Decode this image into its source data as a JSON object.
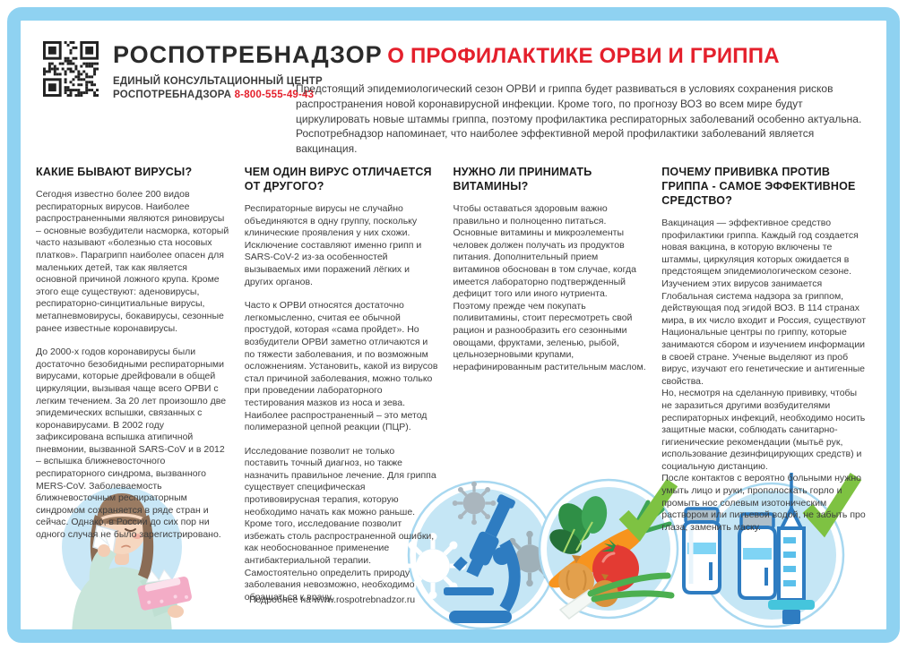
{
  "colors": {
    "frame-blue": "#8fd2f1",
    "accent-red": "#e4202c",
    "circle-blue": "#c6e6f5",
    "check-green": "#7ec242",
    "micro-blue": "#2e7cc1"
  },
  "header": {
    "org_name": "РОСПОТРЕБНАДЗОР",
    "center_line1": "ЕДИНЫЙ КОНСУЛЬТАЦИОННЫЙ ЦЕНТР",
    "center_line2": "РОСПОТРЕБНАДЗОРА",
    "phone": "8-800-555-49-43"
  },
  "title": "О ПРОФИЛАКТИКЕ ОРВИ И ГРИППА",
  "intro": "Предстоящий эпидемиологический сезон ОРВИ и гриппа будет развиваться в условиях сохранения рисков распространения новой коронавирусной инфекции. Кроме того, по прогнозу ВОЗ во всем мире будут циркулировать новые штаммы гриппа, поэтому профилактика респираторных заболеваний особенно актуальна. Роспотребнадзор напоминает, что наиболее эффективной мерой профилактики заболеваний является вакцинация.",
  "columns": [
    {
      "heading": "КАКИЕ БЫВАЮТ ВИРУСЫ?",
      "paragraphs": [
        "Сегодня известно более 200 видов респираторных вирусов. Наиболее распространенными являются риновирусы – основные возбудители насморка, который часто называют «болезнью ста носовых платков». Парагрипп наиболее опасен для маленьких детей, так как является основной причиной ложного крупа. Кроме этого еще существуют: аденовирусы, респираторно-синцитиальные вирусы, метапневмовирусы, бокавирусы, сезонные ранее известные коронавирусы.",
        "До 2000-х годов коронавирусы были достаточно безобидными респираторными вирусами, которые дрейфовали в общей циркуляции, вызывая чаще всего ОРВИ с легким течением. За 20 лет произошло две эпидемических вспышки, связанных с коронавирусами. В 2002 году зафиксирована вспышка атипичной пневмонии, вызванной SARS-CoV и в 2012 – вспышка ближневосточного респираторного синдрома, вызванного MERS-CoV. Заболеваемость ближневосточным респираторным синдромом сохраняется в ряде стран и сейчас. Однако, в России до сих пор ни одного случая не было зарегистрировано."
      ]
    },
    {
      "heading": "ЧЕМ ОДИН ВИРУС ОТЛИЧАЕТСЯ ОТ ДРУГОГО?",
      "paragraphs": [
        "Респираторные вирусы не случайно объединяются в одну группу, поскольку клинические проявления у них схожи. Исключение составляют именно грипп и SARS-CoV-2 из-за особенностей вызываемых ими поражений лёгких и других органов.",
        "Часто к ОРВИ относятся достаточно легкомысленно, считая ее обычной простудой, которая «сама пройдет». Но возбудители ОРВИ заметно отличаются и по тяжести заболевания, и по возможным осложнениям. Установить, какой из вирусов стал причиной заболевания, можно только при проведении лабораторного тестирования мазков из носа и зева. Наиболее распространенный – это метод полимеразной цепной реакции (ПЦР).",
        "Исследование позволит не только поставить точный диагноз, но также назначить правильное лечение. Для гриппа существует специфическая противовирусная терапия, которую необходимо начать как можно раньше. Кроме того, исследование позволит избежать столь распространенной ошибки, как необоснованное применение антибактериальной терапии. Самостоятельно определить природу заболевания невозможно, необходимо обращаться к врачу."
      ]
    },
    {
      "heading": "НУЖНО ЛИ ПРИНИМАТЬ ВИТАМИНЫ?",
      "paragraphs": [
        "Чтобы оставаться здоровым важно правильно и полноценно питаться. Основные витамины и микроэлементы человек должен получать из продуктов питания. Дополнительный прием витаминов обоснован в том случае, когда имеется лабораторно подтвержденный дефицит того или иного нутриента. Поэтому прежде чем покупать поливитамины, стоит пересмотреть свой рацион и разнообразить его сезонными овощами, фруктами, зеленью, рыбой, цельнозерновыми крупами, нерафинированным растительным маслом."
      ]
    },
    {
      "heading": "ПОЧЕМУ ПРИВИВКА ПРОТИВ ГРИППА - САМОЕ ЭФФЕКТИВНОЕ СРЕДСТВО?",
      "paragraphs": [
        "Вакцинация — эффективное средство профилактики гриппа. Каждый год создается новая вакцина, в которую включены те штаммы, циркуляция которых ожидается в предстоящем эпидемиологическом сезоне.",
        "Изучением этих вирусов занимается Глобальная система надзора за гриппом, действующая под эгидой ВОЗ. В 114 странах мира, в их число входит и Россия, существуют Национальные центры по гриппу, которые занимаются сбором и изучением информации в своей стране. Ученые выделяют из проб вирус, изучают его генетические и антигенные свойства.",
        "Но, несмотря на сделанную прививку, чтобы не заразиться другими возбудителями респираторных инфекций, необходимо носить защитные маски, соблюдать санитарно-гигиенические рекомендации (мытьё рук, использование дезинфицирующих средств) и социальную дистанцию.",
        "После контактов с вероятно больными нужно умыть лицо и руки, прополоскать горло и промыть нос солевым изотоническим раствором или питьевой водой, не забыть про глаза, заменить маску."
      ]
    }
  ],
  "footer": {
    "more_info": "Подробнее на www.rospotrebnadzor.ru"
  },
  "illustrations": {
    "qr": "qr-code",
    "woman": "sick-woman-with-tissues",
    "microscope": "viruses-and-microscope",
    "vegetables": "fresh-vegetables-with-checkmark",
    "vaccine": "vaccine-vials-syringe-with-checkmark"
  }
}
